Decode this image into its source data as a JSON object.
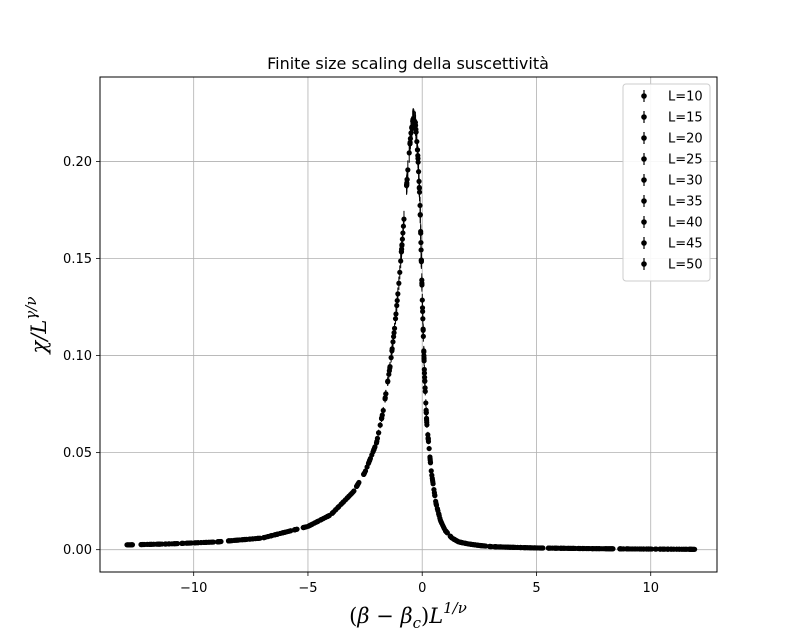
{
  "chart_data": {
    "type": "scatter",
    "title": "Finite size scaling della suscettività",
    "xlabel": "(β − βc)L^{1/ν}",
    "ylabel": "χ/L^{γ/ν}",
    "xlim": [
      -14.1,
      12.9
    ],
    "ylim": [
      -0.0115,
      0.2435
    ],
    "xticks": [
      -10,
      -5,
      0,
      5,
      10
    ],
    "xtick_labels": [
      "−10",
      "−5",
      "0",
      "5",
      "10"
    ],
    "yticks": [
      0.0,
      0.05,
      0.1,
      0.15,
      0.2
    ],
    "ytick_labels": [
      "0.00",
      "0.05",
      "0.10",
      "0.15",
      "0.20"
    ],
    "grid": true,
    "marker_color": "#000000",
    "legend_position": "top-right",
    "series": [
      {
        "name": "L=10",
        "L": 10
      },
      {
        "name": "L=15",
        "L": 15
      },
      {
        "name": "L=20",
        "L": 20
      },
      {
        "name": "L=25",
        "L": 25
      },
      {
        "name": "L=30",
        "L": 30
      },
      {
        "name": "L=35",
        "L": 35
      },
      {
        "name": "L=40",
        "L": 40
      },
      {
        "name": "L=45",
        "L": 45
      },
      {
        "name": "L=50",
        "L": 50
      }
    ],
    "curve_samples": {
      "x": [
        -12.8,
        -11.0,
        -9.0,
        -7.0,
        -5.0,
        -4.0,
        -3.0,
        -2.5,
        -2.0,
        -1.7,
        -1.4,
        -1.2,
        -1.0,
        -0.8,
        -0.6,
        -0.5,
        -0.4,
        -0.3,
        -0.2,
        -0.1,
        0.0,
        0.1,
        0.2,
        0.4,
        0.6,
        0.8,
        1.0,
        1.3,
        1.6,
        2.0,
        2.5,
        3.0,
        4.0,
        5.0,
        7.0,
        9.0,
        11.8
      ],
      "y": [
        0.0025,
        0.003,
        0.004,
        0.006,
        0.012,
        0.018,
        0.03,
        0.04,
        0.055,
        0.072,
        0.095,
        0.115,
        0.14,
        0.17,
        0.2,
        0.214,
        0.222,
        0.22,
        0.205,
        0.18,
        0.13,
        0.09,
        0.065,
        0.04,
        0.024,
        0.015,
        0.01,
        0.006,
        0.004,
        0.003,
        0.0022,
        0.0016,
        0.0012,
        0.0009,
        0.0006,
        0.0004,
        0.0002
      ]
    }
  }
}
